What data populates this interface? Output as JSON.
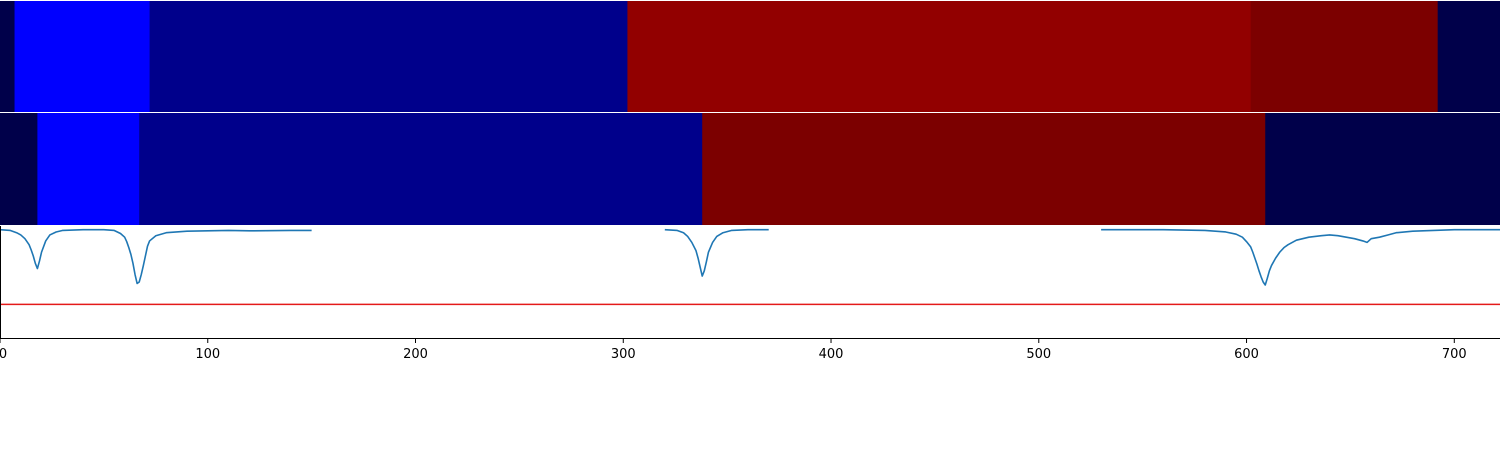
{
  "chart_data": [
    {
      "type": "heatmap",
      "xlim": [
        0,
        722
      ],
      "segments": [
        {
          "start": 0,
          "end": 7,
          "color": "#00004a"
        },
        {
          "start": 7,
          "end": 72,
          "color": "#0000ff"
        },
        {
          "start": 72,
          "end": 302,
          "color": "#00008b"
        },
        {
          "start": 302,
          "end": 602,
          "color": "#920000"
        },
        {
          "start": 602,
          "end": 692,
          "color": "#7c0000"
        },
        {
          "start": 692,
          "end": 722,
          "color": "#00004a"
        }
      ]
    },
    {
      "type": "heatmap",
      "xlim": [
        0,
        722
      ],
      "segments": [
        {
          "start": 0,
          "end": 18,
          "color": "#00004a"
        },
        {
          "start": 18,
          "end": 67,
          "color": "#0000ff"
        },
        {
          "start": 67,
          "end": 338,
          "color": "#00008b"
        },
        {
          "start": 338,
          "end": 609,
          "color": "#7c0000"
        },
        {
          "start": 609,
          "end": 722,
          "color": "#00004a"
        }
      ]
    },
    {
      "type": "line",
      "xlim": [
        0,
        722
      ],
      "ylim": [
        -1.45,
        0.05
      ],
      "xticks": [
        0,
        100,
        200,
        300,
        400,
        500,
        600,
        700
      ],
      "threshold": {
        "y": -1.0,
        "color": "#e41a1a"
      },
      "series": [
        {
          "color": "#1f77b4",
          "x": [
            0,
            5,
            8,
            10,
            12,
            14,
            15,
            16,
            17,
            18,
            19,
            20,
            22,
            24,
            27,
            30,
            40,
            50,
            55,
            58,
            60,
            61,
            62,
            63,
            64,
            65,
            66,
            67,
            68,
            69,
            70,
            71,
            72,
            75,
            80,
            90,
            100,
            110,
            120,
            140,
            150
          ],
          "y": [
            0,
            -0.01,
            -0.04,
            -0.07,
            -0.12,
            -0.2,
            -0.27,
            -0.35,
            -0.45,
            -0.52,
            -0.42,
            -0.3,
            -0.15,
            -0.07,
            -0.03,
            -0.01,
            0,
            0,
            -0.01,
            -0.05,
            -0.1,
            -0.16,
            -0.24,
            -0.33,
            -0.45,
            -0.6,
            -0.72,
            -0.7,
            -0.6,
            -0.48,
            -0.35,
            -0.22,
            -0.15,
            -0.08,
            -0.04,
            -0.02,
            -0.015,
            -0.01,
            -0.015,
            -0.01,
            -0.01
          ]
        },
        {
          "color": "#1f77b4",
          "x": [
            320,
            326,
            329,
            331,
            333,
            335,
            336,
            337,
            338,
            339,
            340,
            341,
            343,
            345,
            348,
            352,
            360,
            370
          ],
          "y": [
            0,
            -0.01,
            -0.04,
            -0.09,
            -0.17,
            -0.28,
            -0.38,
            -0.5,
            -0.62,
            -0.55,
            -0.43,
            -0.3,
            -0.17,
            -0.09,
            -0.04,
            -0.01,
            0,
            0
          ]
        },
        {
          "color": "#1f77b4",
          "x": [
            530,
            560,
            580,
            590,
            595,
            598,
            600,
            602,
            603,
            604,
            605,
            606,
            607,
            608,
            609,
            610,
            611,
            612,
            614,
            616,
            618,
            620,
            624,
            630,
            636,
            640,
            644,
            648,
            652,
            656,
            658,
            660,
            664,
            668,
            672,
            680,
            690,
            700,
            710,
            722
          ],
          "y": [
            0,
            0,
            -0.01,
            -0.03,
            -0.06,
            -0.1,
            -0.16,
            -0.23,
            -0.3,
            -0.38,
            -0.46,
            -0.55,
            -0.63,
            -0.7,
            -0.74,
            -0.65,
            -0.55,
            -0.48,
            -0.38,
            -0.3,
            -0.24,
            -0.2,
            -0.14,
            -0.1,
            -0.08,
            -0.07,
            -0.08,
            -0.1,
            -0.12,
            -0.15,
            -0.17,
            -0.12,
            -0.1,
            -0.07,
            -0.04,
            -0.02,
            -0.01,
            0,
            0,
            0
          ]
        }
      ]
    }
  ]
}
